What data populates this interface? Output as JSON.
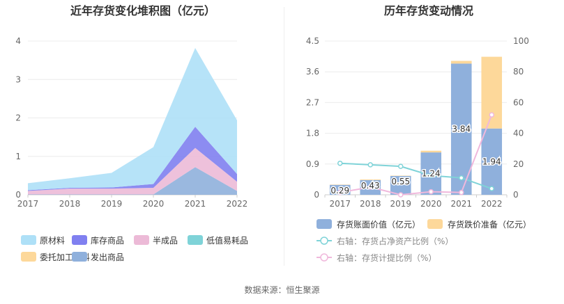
{
  "chart_data": [
    {
      "type": "area",
      "title": "近年存货变化堆积图（亿元）",
      "categories": [
        "2017",
        "2018",
        "2019",
        "2020",
        "2021",
        "2022"
      ],
      "ylim": [
        0,
        4
      ],
      "yticks": [
        "0",
        "1",
        "2",
        "3",
        "4"
      ],
      "stacked": true,
      "grid": true,
      "series": [
        {
          "name": "发出商品",
          "color": "#8fb0dc",
          "values": [
            0.01,
            0.01,
            0.01,
            0.01,
            0.72,
            0.1
          ]
        },
        {
          "name": "委托加工材料",
          "color": "#fdd89a",
          "values": [
            0.0,
            0.0,
            0.0,
            0.0,
            0.0,
            0.0
          ]
        },
        {
          "name": "低值易耗品",
          "color": "#7fd3d8",
          "values": [
            0.0,
            0.0,
            0.0,
            0.0,
            0.0,
            0.0
          ]
        },
        {
          "name": "半成品",
          "color": "#ecbad7",
          "values": [
            0.09,
            0.15,
            0.15,
            0.17,
            0.5,
            0.24
          ]
        },
        {
          "name": "库存商品",
          "color": "#8080f0",
          "values": [
            0.02,
            0.02,
            0.03,
            0.1,
            0.55,
            0.2
          ]
        },
        {
          "name": "原材料",
          "color": "#aee0f7",
          "values": [
            0.18,
            0.25,
            0.38,
            0.96,
            2.05,
            1.4
          ]
        }
      ],
      "legend": {
        "placement": "bottom",
        "order": [
          "原材料",
          "库存商品",
          "半成品",
          "低值易耗品",
          "委托加工材料",
          "发出商品"
        ]
      }
    },
    {
      "type": "bar",
      "title": "历年存货变动情况",
      "categories": [
        "2017",
        "2018",
        "2019",
        "2020",
        "2021",
        "2022"
      ],
      "ylim": [
        0,
        4.5
      ],
      "yticks": [
        "0",
        "0.9",
        "1.8",
        "2.7",
        "3.6",
        "4.5"
      ],
      "y2lim": [
        0,
        100
      ],
      "y2ticks": [
        "0",
        "20",
        "40",
        "60",
        "80",
        "100"
      ],
      "stacked": true,
      "grid": true,
      "series": [
        {
          "name": "存货账面价值（亿元）",
          "color": "#8fb0dc",
          "axis": "left",
          "kind": "bar",
          "values": [
            0.29,
            0.43,
            0.55,
            1.24,
            3.84,
            1.94
          ],
          "labels": [
            "0.29",
            "0.43",
            "0.55",
            "1.24",
            "3.84",
            "1.94"
          ]
        },
        {
          "name": "存货跌价准备（亿元）",
          "color": "#fdd89a",
          "axis": "left",
          "kind": "bar",
          "values": [
            0.01,
            0.02,
            0.01,
            0.05,
            0.08,
            2.1
          ]
        },
        {
          "name": "右轴：存货占净资产比例（%）",
          "color": "#7fd3d8",
          "axis": "right",
          "kind": "line",
          "values": [
            20.5,
            19.5,
            18.5,
            12.5,
            11.0,
            4.0
          ]
        },
        {
          "name": "右轴：存货计提比例（%）",
          "color": "#f0b8dc",
          "axis": "right",
          "kind": "line",
          "values": [
            1.5,
            5.0,
            0.0,
            2.0,
            1.5,
            52.0
          ]
        }
      ],
      "legend": {
        "placement": "bottom"
      }
    }
  ],
  "footer": {
    "source": "数据来源：恒生聚源"
  }
}
